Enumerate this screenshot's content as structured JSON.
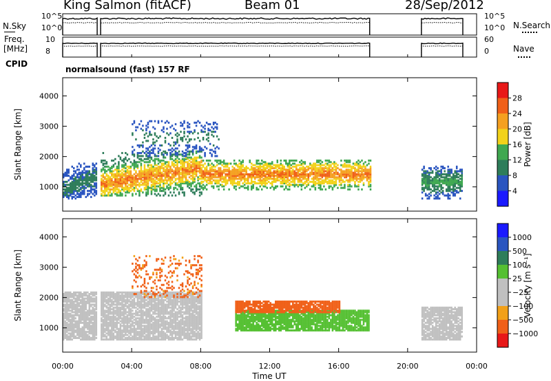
{
  "header": {
    "station": "King Salmon (fitACF)",
    "beam": "Beam 01",
    "date": "28/Sep/2012"
  },
  "labels": {
    "nsky": "N.Sky",
    "freq_line1": "Freq.",
    "freq_line2": "[MHz]",
    "cpid": "CPID",
    "cpid_value": "normalsound (fast) 157 RF",
    "nsearch": "N.Search",
    "nave": "Nave",
    "nsky_ticks": [
      "10^5",
      "10^0"
    ],
    "freq_ticks": [
      "10",
      "8"
    ],
    "nave_ticks": [
      "60",
      "0"
    ]
  },
  "colors": {
    "power_scale": [
      "#1a1aff",
      "#2a55c0",
      "#2e7d5a",
      "#3fa850",
      "#f2d21a",
      "#f5a020",
      "#f06018",
      "#e81818"
    ],
    "velocity_scale": [
      "#1a1aff",
      "#2a55c0",
      "#2e7d5a",
      "#55c032",
      "#c0c0c0",
      "#c0c0c0",
      "#f2a018",
      "#f06018",
      "#e81818"
    ]
  },
  "chart_data": [
    {
      "type": "heatmap",
      "title": "Power",
      "xlabel": "Time UT",
      "ylabel": "Slant Range [km]",
      "colorbar_label": "Power [dB]",
      "colorbar_ticks": [
        "28",
        "24",
        "20",
        "16",
        "12",
        "8",
        "4"
      ],
      "x_ticks": [
        "00:00",
        "04:00",
        "08:00",
        "12:00",
        "16:00",
        "20:00",
        "00:00"
      ],
      "y_ticks": [
        "4000",
        "3000",
        "2000",
        "1000"
      ],
      "xlim": [
        "00:00",
        "24:00"
      ],
      "ylim": [
        200,
        4600
      ],
      "data_gaps_ut": [
        [
          "02:00",
          "02:12"
        ],
        [
          "17:48",
          "20:48"
        ],
        [
          "23:12",
          "24:00"
        ]
      ],
      "echo_regions": [
        {
          "region": "near-range band",
          "time_ut": [
            "00:00",
            "02:00"
          ],
          "range_km": [
            600,
            1800
          ],
          "power_db": [
            4,
            12
          ]
        },
        {
          "region": "near-range band",
          "time_ut": [
            "02:12",
            "08:00"
          ],
          "range_km": [
            700,
            2200
          ],
          "power_db": [
            8,
            28
          ]
        },
        {
          "region": "main echo",
          "time_ut": [
            "08:00",
            "17:48"
          ],
          "range_km": [
            900,
            1900
          ],
          "power_db": [
            12,
            28
          ]
        },
        {
          "region": "far-range patches",
          "time_ut": [
            "04:00",
            "09:00"
          ],
          "range_km": [
            2000,
            3200
          ],
          "power_db": [
            4,
            12
          ]
        },
        {
          "region": "night band",
          "time_ut": [
            "20:48",
            "23:12"
          ],
          "range_km": [
            600,
            1700
          ],
          "power_db": [
            4,
            16
          ]
        }
      ]
    },
    {
      "type": "heatmap",
      "title": "Velocity",
      "xlabel": "Time UT",
      "ylabel": "Slant Range [km]",
      "colorbar_label": "Velocity [m s⁻¹]",
      "colorbar_ticks": [
        "1000",
        "500",
        "100",
        "25",
        "−25",
        "−100",
        "−500",
        "−1000"
      ],
      "x_ticks": [
        "00:00",
        "04:00",
        "08:00",
        "12:00",
        "16:00",
        "20:00",
        "00:00"
      ],
      "y_ticks": [
        "4000",
        "3000",
        "2000",
        "1000"
      ],
      "xlim": [
        "00:00",
        "24:00"
      ],
      "ylim": [
        200,
        4600
      ],
      "data_gaps_ut": [
        [
          "02:00",
          "02:12"
        ],
        [
          "17:48",
          "20:48"
        ],
        [
          "23:12",
          "24:00"
        ]
      ],
      "echo_regions": [
        {
          "region": "ground scatter",
          "time_ut": [
            "00:00",
            "08:00"
          ],
          "range_km": [
            600,
            2200
          ],
          "velocity_ms": [
            -25,
            25
          ]
        },
        {
          "region": "far-range patches",
          "time_ut": [
            "04:00",
            "08:00"
          ],
          "range_km": [
            2000,
            3400
          ],
          "velocity_ms": [
            -500,
            -25
          ]
        },
        {
          "region": "ionospheric band",
          "time_ut": [
            "10:00",
            "17:48"
          ],
          "range_km": [
            900,
            1600
          ],
          "velocity_ms": [
            25,
            100
          ]
        },
        {
          "region": "ionospheric band upper",
          "time_ut": [
            "10:00",
            "16:00"
          ],
          "range_km": [
            1500,
            1900
          ],
          "velocity_ms": [
            -500,
            -100
          ]
        },
        {
          "region": "night band",
          "time_ut": [
            "20:48",
            "23:12"
          ],
          "range_km": [
            600,
            1700
          ],
          "velocity_ms": [
            -25,
            25
          ]
        }
      ]
    }
  ]
}
